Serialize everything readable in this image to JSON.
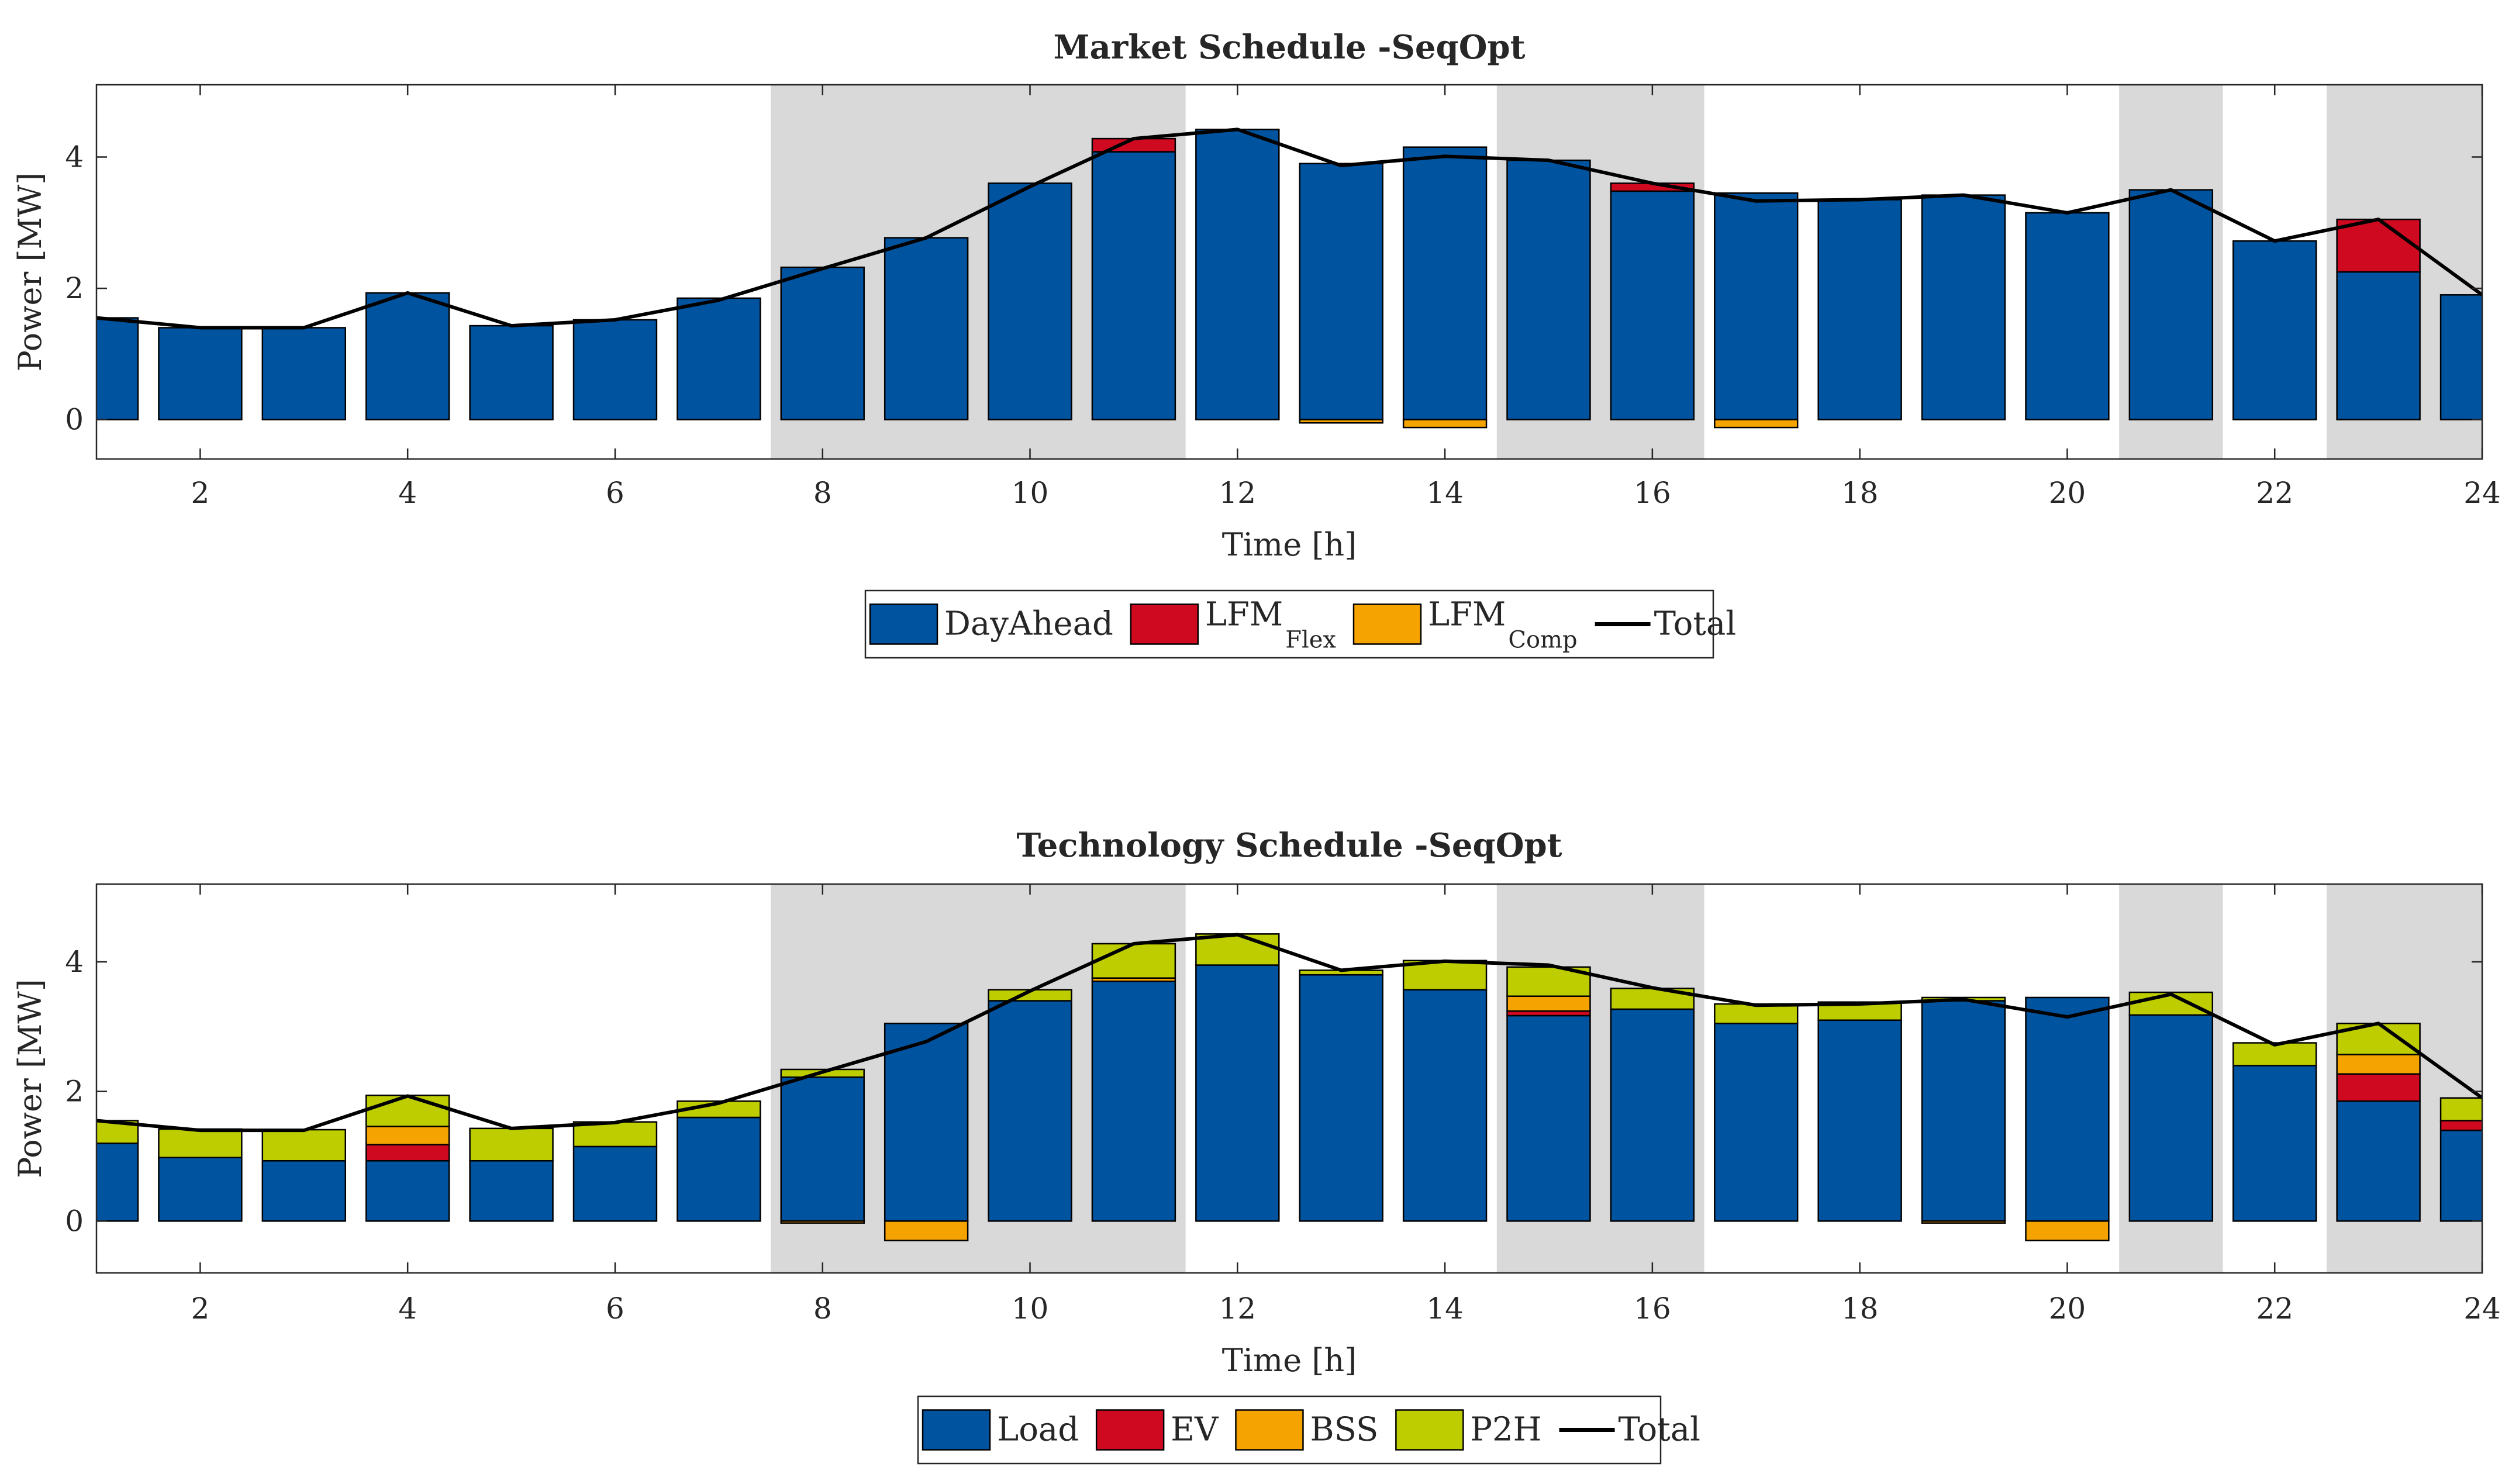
{
  "chart_data": [
    {
      "type": "bar",
      "stacked": true,
      "title": "Market Schedule -SeqOpt",
      "xlabel": "Time [h]",
      "ylabel": "Power [MW]",
      "xlim": [
        1,
        24
      ],
      "ylim": [
        -0.6,
        5.1
      ],
      "xticks": [
        2,
        4,
        6,
        8,
        10,
        12,
        14,
        16,
        18,
        20,
        22,
        24
      ],
      "yticks": [
        0,
        2,
        4
      ],
      "grid": false,
      "shaded_hours": [
        [
          8,
          11
        ],
        [
          15,
          16
        ],
        [
          21,
          21
        ],
        [
          23,
          24
        ]
      ],
      "shaded_color": "#d9d9d9",
      "legend_position": "bottom",
      "categories": [
        1,
        2,
        3,
        4,
        5,
        6,
        7,
        8,
        9,
        10,
        11,
        12,
        13,
        14,
        15,
        16,
        17,
        18,
        19,
        20,
        21,
        22,
        23,
        24
      ],
      "series": [
        {
          "name": "DayAhead",
          "sub": "",
          "color": "#00539f",
          "values": [
            1.55,
            1.4,
            1.4,
            1.93,
            1.43,
            1.52,
            1.85,
            2.32,
            2.77,
            3.6,
            4.08,
            4.42,
            3.9,
            4.15,
            3.95,
            3.48,
            3.45,
            3.35,
            3.42,
            3.15,
            3.5,
            2.72,
            2.25,
            1.9
          ]
        },
        {
          "name": "LFM",
          "sub": "Flex",
          "color": "#cf0a20",
          "values": [
            0,
            0,
            0,
            0,
            0,
            0,
            0,
            0,
            0,
            0,
            0.2,
            0,
            0,
            0,
            0,
            0.12,
            0,
            0,
            0,
            0,
            0,
            0,
            0.8,
            0
          ]
        },
        {
          "name": "LFM",
          "sub": "Comp",
          "color": "#f5a300",
          "values": [
            0,
            0,
            0,
            0,
            0,
            0,
            0,
            0,
            0,
            0,
            0,
            0,
            -0.05,
            -0.12,
            0,
            0,
            -0.12,
            0,
            0,
            0,
            0,
            0,
            0,
            0
          ]
        }
      ],
      "line": {
        "name": "Total",
        "color": "#000000",
        "values": [
          1.55,
          1.4,
          1.4,
          1.93,
          1.43,
          1.52,
          1.82,
          2.3,
          2.77,
          3.55,
          4.28,
          4.42,
          3.87,
          4.01,
          3.95,
          3.6,
          3.33,
          3.35,
          3.42,
          3.15,
          3.5,
          2.72,
          3.05,
          1.9
        ]
      }
    },
    {
      "type": "bar",
      "stacked": true,
      "title": "Technology Schedule -SeqOpt",
      "xlabel": "Time [h]",
      "ylabel": "Power [MW]",
      "xlim": [
        1,
        24
      ],
      "ylim": [
        -0.8,
        5.2
      ],
      "xticks": [
        2,
        4,
        6,
        8,
        10,
        12,
        14,
        16,
        18,
        20,
        22,
        24
      ],
      "yticks": [
        0,
        2,
        4
      ],
      "grid": false,
      "shaded_hours": [
        [
          8,
          11
        ],
        [
          15,
          16
        ],
        [
          21,
          21
        ],
        [
          23,
          24
        ]
      ],
      "shaded_color": "#d9d9d9",
      "legend_position": "bottom",
      "categories": [
        1,
        2,
        3,
        4,
        5,
        6,
        7,
        8,
        9,
        10,
        11,
        12,
        13,
        14,
        15,
        16,
        17,
        18,
        19,
        20,
        21,
        22,
        23,
        24
      ],
      "series": [
        {
          "name": "Load",
          "sub": "",
          "color": "#00539f",
          "values": [
            1.2,
            0.98,
            0.93,
            0.93,
            0.93,
            1.15,
            1.6,
            2.22,
            3.05,
            3.4,
            3.7,
            3.95,
            3.8,
            3.57,
            3.17,
            3.27,
            3.05,
            3.1,
            3.4,
            3.45,
            3.18,
            2.4,
            1.85,
            1.4
          ]
        },
        {
          "name": "EV",
          "sub": "",
          "color": "#cf0a20",
          "values": [
            0,
            0,
            0,
            0.25,
            0,
            0,
            0,
            0,
            0,
            0,
            0,
            0,
            0,
            0,
            0.07,
            0,
            0,
            0,
            0,
            0,
            0,
            0,
            0.42,
            0.15
          ]
        },
        {
          "name": "BSS",
          "sub": "",
          "color": "#f5a300",
          "values": [
            0,
            0,
            0,
            0.28,
            0,
            0,
            0,
            -0.03,
            -0.3,
            0,
            0.05,
            0,
            0,
            0,
            0.23,
            0,
            0,
            0,
            -0.03,
            -0.3,
            0,
            0,
            0.3,
            0
          ]
        },
        {
          "name": "P2H",
          "sub": "",
          "color": "#bdcd00",
          "values": [
            0.35,
            0.44,
            0.48,
            0.48,
            0.5,
            0.38,
            0.25,
            0.12,
            0,
            0.17,
            0.53,
            0.48,
            0.07,
            0.45,
            0.45,
            0.32,
            0.3,
            0.28,
            0.05,
            0,
            0.35,
            0.35,
            0.48,
            0.35
          ]
        }
      ],
      "line": {
        "name": "Total",
        "color": "#000000",
        "values": [
          1.55,
          1.4,
          1.4,
          1.93,
          1.43,
          1.52,
          1.82,
          2.3,
          2.77,
          3.55,
          4.28,
          4.42,
          3.87,
          4.01,
          3.95,
          3.6,
          3.33,
          3.35,
          3.42,
          3.15,
          3.5,
          2.72,
          3.05,
          1.9
        ]
      }
    }
  ]
}
